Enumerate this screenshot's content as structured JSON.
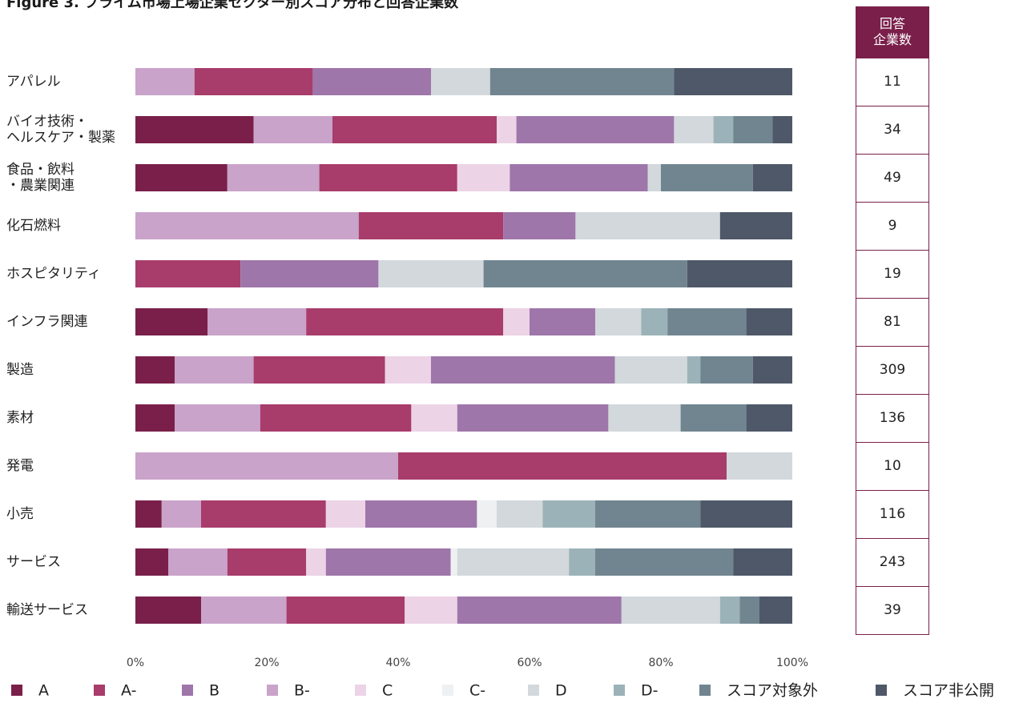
{
  "chart_data": {
    "type": "stacked-bar-horizontal",
    "title": "Figure 3. プライム市場上場企業セクター別スコア分布と回答企業数",
    "categories": [
      "アパレル",
      "バイオ技術・\nヘルスケア・製薬",
      "食品・飲料\n・農業関連",
      "化石燃料",
      "ホスピタリティ",
      "インフラ関連",
      "製造",
      "素材",
      "発電",
      "小売",
      "サービス",
      "輸送サービス"
    ],
    "series": [
      {
        "name": "A",
        "color": "#7a1f4a",
        "values": [
          0,
          18,
          14,
          0,
          0,
          11,
          6,
          6,
          0,
          4,
          5,
          10
        ]
      },
      {
        "name": "A-",
        "color": "#a83c6b",
        "values": [
          18,
          25,
          21,
          22,
          16,
          30,
          20,
          23,
          50,
          19,
          12,
          18
        ]
      },
      {
        "name": "B",
        "color": "#9e76aa",
        "values": [
          18,
          24,
          21,
          11,
          21,
          10,
          28,
          23,
          0,
          17,
          19,
          25
        ]
      },
      {
        "name": "B-",
        "color": "#c9a3c9",
        "values": [
          9,
          12,
          14,
          34,
          0,
          15,
          12,
          13,
          40,
          6,
          9,
          13
        ]
      },
      {
        "name": "C",
        "color": "#ecd3e6",
        "values": [
          0,
          3,
          8,
          0,
          0,
          4,
          7,
          7,
          0,
          6,
          3,
          8
        ]
      },
      {
        "name": "C-",
        "color": "#eef0f2",
        "values": [
          0,
          0,
          0,
          0,
          0,
          0,
          0,
          0,
          0,
          3,
          1,
          0
        ]
      },
      {
        "name": "D",
        "color": "#d2d8db",
        "values": [
          9,
          6,
          2,
          22,
          16,
          7,
          11,
          11,
          10,
          7,
          17,
          15
        ]
      },
      {
        "name": "D-",
        "color": "#9bb3b8",
        "values": [
          0,
          3,
          0,
          0,
          0,
          4,
          2,
          0,
          0,
          8,
          4,
          3
        ]
      },
      {
        "name": "スコア対象外",
        "color": "#718590",
        "values": [
          28,
          6,
          14,
          0,
          31,
          12,
          8,
          10,
          0,
          16,
          21,
          3
        ]
      },
      {
        "name": "スコア非公開",
        "color": "#4e5868",
        "values": [
          18,
          3,
          6,
          11,
          16,
          7,
          6,
          7,
          0,
          14,
          9,
          5
        ]
      }
    ],
    "stack_order": [
      0,
      3,
      1,
      4,
      2,
      5,
      6,
      7,
      8,
      9
    ],
    "xlim": [
      0,
      100
    ],
    "xticks": [
      {
        "value": 0,
        "label": "0%"
      },
      {
        "value": 20,
        "label": "20%"
      },
      {
        "value": 40,
        "label": "40%"
      },
      {
        "value": 60,
        "label": "60%"
      },
      {
        "value": 80,
        "label": "80%"
      },
      {
        "value": 100,
        "label": "100%"
      }
    ],
    "grid": false,
    "legend": "bottom",
    "respondents": {
      "header": "回答\n企業数",
      "header_color": "#7a1f4a",
      "values": [
        11,
        34,
        49,
        9,
        19,
        81,
        309,
        136,
        10,
        116,
        243,
        39
      ]
    }
  }
}
